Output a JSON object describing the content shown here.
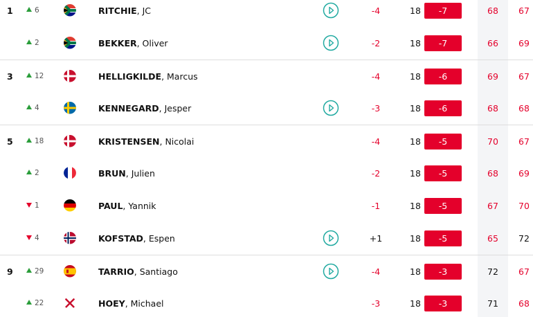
{
  "leaderboard": {
    "rows": [
      {
        "pos": "1",
        "move": "6",
        "dir": "up",
        "flag": "za",
        "name": "RITCHIE, JC",
        "video": true,
        "today": "-4",
        "thru": "18",
        "total": "-7",
        "r1": "68",
        "r2": "67",
        "round_colors": [
          "red",
          "red"
        ]
      },
      {
        "pos": "",
        "move": "2",
        "dir": "up",
        "flag": "za",
        "name": "BEKKER, Oliver",
        "video": true,
        "today": "-2",
        "thru": "18",
        "total": "-7",
        "r1": "66",
        "r2": "69",
        "round_colors": [
          "red",
          "red"
        ]
      },
      {
        "pos": "3",
        "move": "12",
        "dir": "up",
        "flag": "dk",
        "name": "HELLIGKILDE, Marcus",
        "video": false,
        "today": "-4",
        "thru": "18",
        "total": "-6",
        "r1": "69",
        "r2": "67",
        "round_colors": [
          "red",
          "red"
        ]
      },
      {
        "pos": "",
        "move": "4",
        "dir": "up",
        "flag": "se",
        "name": "KENNEGARD, Jesper",
        "video": true,
        "today": "-3",
        "thru": "18",
        "total": "-6",
        "r1": "68",
        "r2": "68",
        "round_colors": [
          "red",
          "red"
        ]
      },
      {
        "pos": "5",
        "move": "18",
        "dir": "up",
        "flag": "dk",
        "name": "KRISTENSEN, Nicolai",
        "video": false,
        "today": "-4",
        "thru": "18",
        "total": "-5",
        "r1": "70",
        "r2": "67",
        "round_colors": [
          "red",
          "red"
        ]
      },
      {
        "pos": "",
        "move": "2",
        "dir": "up",
        "flag": "fr",
        "name": "BRUN, Julien",
        "video": false,
        "today": "-2",
        "thru": "18",
        "total": "-5",
        "r1": "68",
        "r2": "69",
        "round_colors": [
          "red",
          "red"
        ]
      },
      {
        "pos": "",
        "move": "1",
        "dir": "down",
        "flag": "de",
        "name": "PAUL, Yannik",
        "video": false,
        "today": "-1",
        "thru": "18",
        "total": "-5",
        "r1": "67",
        "r2": "70",
        "round_colors": [
          "red",
          "red"
        ]
      },
      {
        "pos": "",
        "move": "4",
        "dir": "down",
        "flag": "no",
        "name": "KOFSTAD, Espen",
        "video": true,
        "today": "+1",
        "thru": "18",
        "total": "-5",
        "r1": "65",
        "r2": "72",
        "round_colors": [
          "red",
          "black"
        ]
      },
      {
        "pos": "9",
        "move": "29",
        "dir": "up",
        "flag": "es",
        "name": "TARRIO, Santiago",
        "video": true,
        "today": "-4",
        "thru": "18",
        "total": "-3",
        "r1": "72",
        "r2": "67",
        "round_colors": [
          "black",
          "red"
        ]
      },
      {
        "pos": "",
        "move": "22",
        "dir": "up",
        "flag": "nir",
        "name": "HOEY, Michael",
        "video": false,
        "today": "-3",
        "thru": "18",
        "total": "-3",
        "r1": "71",
        "r2": "68",
        "round_colors": [
          "black",
          "red"
        ]
      }
    ]
  }
}
